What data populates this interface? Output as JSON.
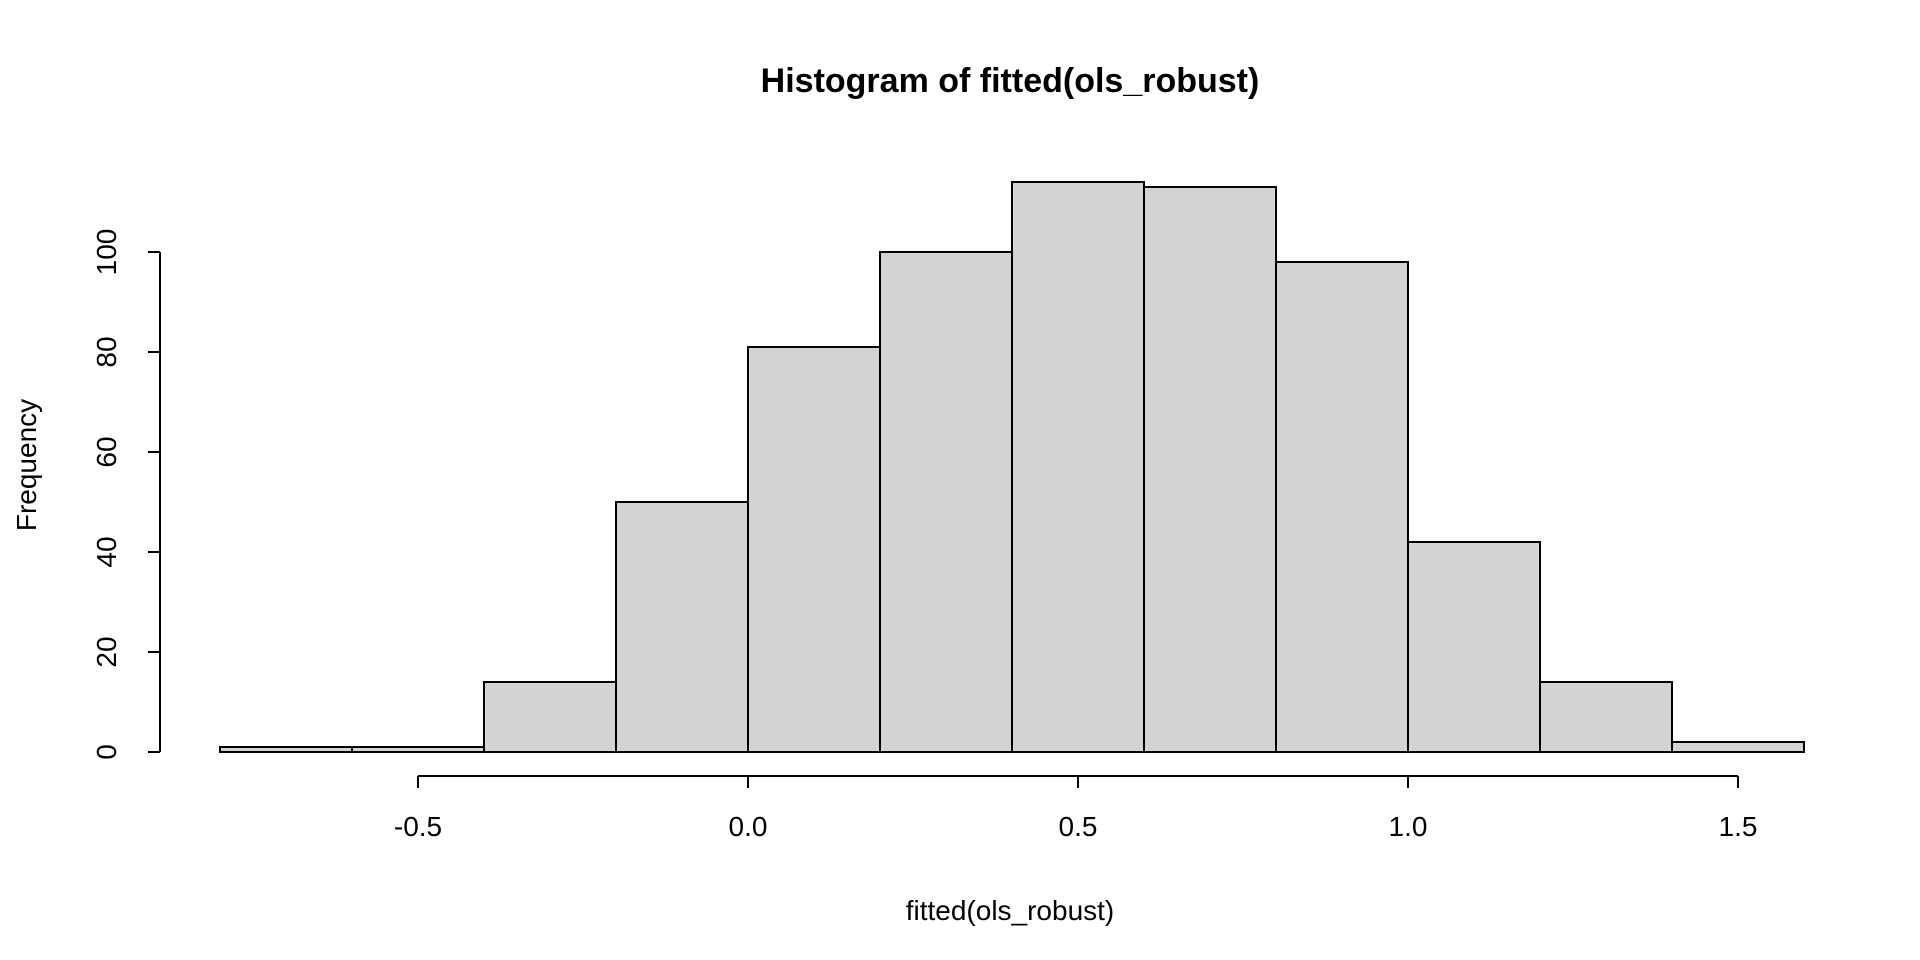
{
  "chart_data": {
    "type": "bar",
    "title": "Histogram of fitted(ols_robust)",
    "xlabel": "fitted(ols_robust)",
    "ylabel": "Frequency",
    "bins": [
      {
        "x0": -0.8,
        "x1": -0.6,
        "count": 1
      },
      {
        "x0": -0.6,
        "x1": -0.4,
        "count": 1
      },
      {
        "x0": -0.4,
        "x1": -0.2,
        "count": 14
      },
      {
        "x0": -0.2,
        "x1": 0.0,
        "count": 50
      },
      {
        "x0": 0.0,
        "x1": 0.2,
        "count": 81
      },
      {
        "x0": 0.2,
        "x1": 0.4,
        "count": 100
      },
      {
        "x0": 0.4,
        "x1": 0.6,
        "count": 114
      },
      {
        "x0": 0.6,
        "x1": 0.8,
        "count": 113
      },
      {
        "x0": 0.8,
        "x1": 1.0,
        "count": 98
      },
      {
        "x0": 1.0,
        "x1": 1.2,
        "count": 42
      },
      {
        "x0": 1.2,
        "x1": 1.4,
        "count": 14
      },
      {
        "x0": 1.4,
        "x1": 1.6,
        "count": 2
      }
    ],
    "xticks": [
      -0.5,
      0.0,
      0.5,
      1.0,
      1.5
    ],
    "xtick_labels": [
      "-0.5",
      "0.0",
      "0.5",
      "1.0",
      "1.5"
    ],
    "yticks": [
      0,
      20,
      40,
      60,
      80,
      100
    ],
    "ytick_labels": [
      "0",
      "20",
      "40",
      "60",
      "80",
      "100"
    ],
    "xlim": [
      -0.8,
      1.6
    ],
    "ylim": [
      0,
      114
    ],
    "grid": false,
    "colors": {
      "bar_fill": "#d3d3d3",
      "bar_edge": "#000000"
    }
  }
}
